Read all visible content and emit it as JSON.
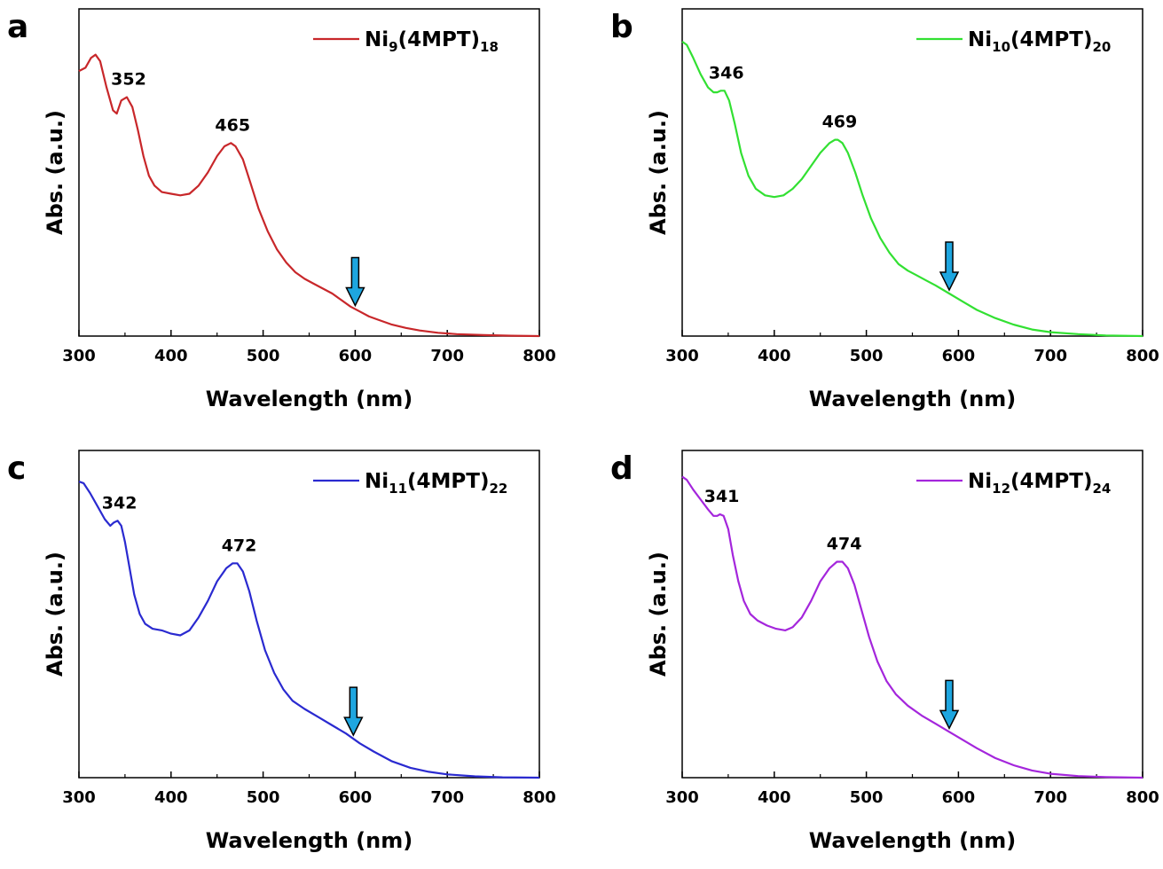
{
  "chart_data": [
    {
      "type": "line",
      "panel_label": "a",
      "xlabel": "Wavelength (nm)",
      "ylabel": "Abs. (a.u.)",
      "xlim": [
        300,
        800
      ],
      "ylim": [
        0,
        1
      ],
      "xticks": [
        "300",
        "400",
        "500",
        "600",
        "700",
        "800"
      ],
      "series": [
        {
          "name": "Ni9(4MPT)18",
          "name_base": "Ni",
          "sub1": "9",
          "name_mid": "(4MPT)",
          "sub2": "18",
          "color": "#c8272a",
          "x": [
            300,
            307,
            313,
            318,
            323,
            330,
            337,
            341,
            346,
            352,
            358,
            364,
            370,
            376,
            382,
            390,
            400,
            410,
            420,
            430,
            440,
            450,
            458,
            465,
            470,
            478,
            486,
            495,
            505,
            515,
            525,
            535,
            545,
            555,
            565,
            575,
            585,
            595,
            605,
            615,
            625,
            640,
            655,
            670,
            690,
            710,
            740,
            770,
            800
          ],
          "y": [
            0.81,
            0.82,
            0.85,
            0.86,
            0.84,
            0.76,
            0.69,
            0.68,
            0.72,
            0.73,
            0.7,
            0.63,
            0.55,
            0.49,
            0.46,
            0.44,
            0.435,
            0.43,
            0.435,
            0.46,
            0.5,
            0.55,
            0.58,
            0.59,
            0.58,
            0.54,
            0.47,
            0.39,
            0.32,
            0.265,
            0.225,
            0.195,
            0.175,
            0.16,
            0.145,
            0.13,
            0.11,
            0.09,
            0.075,
            0.06,
            0.05,
            0.035,
            0.025,
            0.017,
            0.01,
            0.006,
            0.003,
            0.001,
            0.0
          ]
        }
      ],
      "annotations": [
        {
          "text": "352",
          "x": 352,
          "y": 0.73
        },
        {
          "text": "465",
          "x": 465,
          "y": 0.59
        }
      ],
      "arrow_x": 600
    },
    {
      "type": "line",
      "panel_label": "b",
      "xlabel": "Wavelength (nm)",
      "ylabel": "Abs. (a.u.)",
      "xlim": [
        300,
        800
      ],
      "ylim": [
        0,
        1
      ],
      "xticks": [
        "300",
        "400",
        "500",
        "600",
        "700",
        "800"
      ],
      "series": [
        {
          "name": "Ni10(4MPT)20",
          "name_base": "Ni",
          "sub1": "10",
          "name_mid": "(4MPT)",
          "sub2": "20",
          "color": "#32e032",
          "x": [
            300,
            305,
            312,
            320,
            328,
            334,
            338,
            342,
            346,
            351,
            357,
            364,
            372,
            380,
            390,
            400,
            410,
            420,
            430,
            440,
            450,
            460,
            466,
            469,
            474,
            480,
            488,
            496,
            505,
            515,
            525,
            535,
            545,
            555,
            565,
            575,
            590,
            605,
            620,
            640,
            660,
            680,
            700,
            730,
            760,
            800
          ],
          "y": [
            0.9,
            0.89,
            0.85,
            0.8,
            0.76,
            0.745,
            0.745,
            0.75,
            0.75,
            0.72,
            0.65,
            0.56,
            0.49,
            0.45,
            0.43,
            0.425,
            0.43,
            0.45,
            0.48,
            0.52,
            0.56,
            0.59,
            0.6,
            0.6,
            0.59,
            0.56,
            0.5,
            0.43,
            0.36,
            0.3,
            0.255,
            0.22,
            0.2,
            0.185,
            0.17,
            0.155,
            0.13,
            0.105,
            0.08,
            0.055,
            0.035,
            0.02,
            0.012,
            0.006,
            0.002,
            0.0
          ]
        }
      ],
      "annotations": [
        {
          "text": "346",
          "x": 346,
          "y": 0.75
        },
        {
          "text": "469",
          "x": 469,
          "y": 0.6
        }
      ],
      "arrow_x": 590
    },
    {
      "type": "line",
      "panel_label": "c",
      "xlabel": "Wavelength (nm)",
      "ylabel": "Abs. (a.u.)",
      "xlim": [
        300,
        800
      ],
      "ylim": [
        0,
        1
      ],
      "xticks": [
        "300",
        "400",
        "500",
        "600",
        "700",
        "800"
      ],
      "series": [
        {
          "name": "Ni11(4MPT)22",
          "name_base": "Ni",
          "sub1": "11",
          "name_mid": "(4MPT)",
          "sub2": "22",
          "color": "#2a2ad0",
          "x": [
            300,
            305,
            312,
            320,
            328,
            334,
            338,
            342,
            346,
            350,
            355,
            360,
            366,
            372,
            380,
            390,
            400,
            410,
            420,
            430,
            440,
            450,
            460,
            467,
            472,
            478,
            485,
            493,
            502,
            512,
            522,
            532,
            545,
            560,
            575,
            590,
            605,
            620,
            640,
            660,
            680,
            700,
            730,
            760,
            800
          ],
          "y": [
            0.905,
            0.9,
            0.87,
            0.83,
            0.79,
            0.77,
            0.78,
            0.785,
            0.77,
            0.72,
            0.64,
            0.56,
            0.5,
            0.47,
            0.455,
            0.45,
            0.44,
            0.435,
            0.45,
            0.49,
            0.54,
            0.6,
            0.64,
            0.655,
            0.655,
            0.63,
            0.57,
            0.48,
            0.39,
            0.32,
            0.27,
            0.235,
            0.21,
            0.185,
            0.16,
            0.135,
            0.105,
            0.08,
            0.05,
            0.03,
            0.018,
            0.01,
            0.004,
            0.001,
            0.0
          ]
        }
      ],
      "annotations": [
        {
          "text": "342",
          "x": 342,
          "y": 0.785
        },
        {
          "text": "472",
          "x": 472,
          "y": 0.655
        }
      ],
      "arrow_x": 598
    },
    {
      "type": "line",
      "panel_label": "d",
      "xlabel": "Wavelength (nm)",
      "ylabel": "Abs. (a.u.)",
      "xlim": [
        300,
        800
      ],
      "ylim": [
        0,
        1
      ],
      "xticks": [
        "300",
        "400",
        "500",
        "600",
        "700",
        "800"
      ],
      "series": [
        {
          "name": "Ni12(4MPT)24",
          "name_base": "Ni",
          "sub1": "12",
          "name_mid": "(4MPT)",
          "sub2": "24",
          "color": "#a426dc",
          "x": [
            300,
            305,
            312,
            320,
            328,
            334,
            338,
            341,
            345,
            350,
            355,
            361,
            367,
            374,
            382,
            392,
            402,
            412,
            420,
            430,
            440,
            450,
            460,
            468,
            474,
            480,
            487,
            495,
            503,
            512,
            522,
            532,
            545,
            560,
            575,
            590,
            605,
            620,
            640,
            660,
            680,
            700,
            730,
            760,
            800
          ],
          "y": [
            0.92,
            0.91,
            0.88,
            0.85,
            0.82,
            0.8,
            0.8,
            0.805,
            0.8,
            0.76,
            0.68,
            0.6,
            0.54,
            0.5,
            0.48,
            0.465,
            0.455,
            0.45,
            0.46,
            0.49,
            0.54,
            0.6,
            0.64,
            0.66,
            0.66,
            0.64,
            0.59,
            0.51,
            0.43,
            0.355,
            0.295,
            0.255,
            0.22,
            0.19,
            0.165,
            0.14,
            0.115,
            0.09,
            0.06,
            0.038,
            0.022,
            0.012,
            0.005,
            0.002,
            0.0
          ]
        }
      ],
      "annotations": [
        {
          "text": "341",
          "x": 341,
          "y": 0.805
        },
        {
          "text": "474",
          "x": 474,
          "y": 0.66
        }
      ],
      "arrow_x": 590
    }
  ],
  "styles": {
    "arrow_fill": "#1ea6e0",
    "axis_color": "#000000"
  }
}
